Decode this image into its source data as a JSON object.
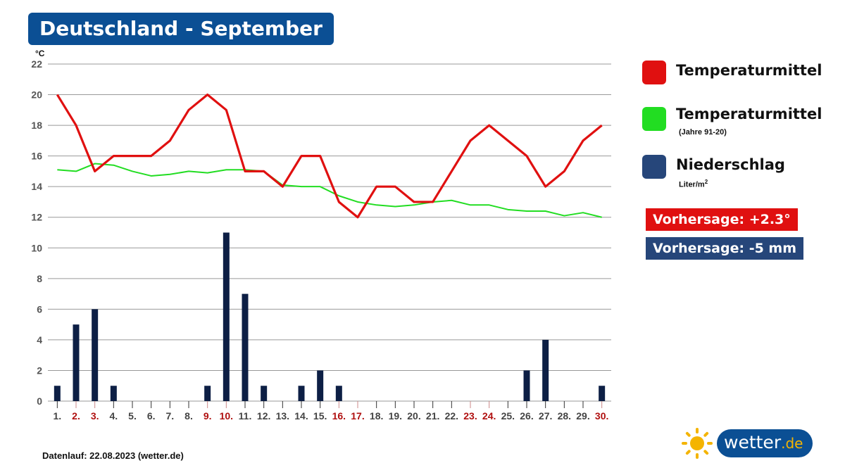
{
  "header": {
    "title": "Deutschland - September"
  },
  "chart_data": {
    "type": "line+bar",
    "title": "Deutschland - September",
    "ylabel": "°C",
    "ylim": [
      0,
      22
    ],
    "yticks": [
      0,
      2,
      4,
      6,
      8,
      10,
      12,
      14,
      16,
      18,
      20,
      22
    ],
    "grid": true,
    "categories": [
      "1.",
      "2.",
      "3.",
      "4.",
      "5.",
      "6.",
      "7.",
      "8.",
      "9.",
      "10.",
      "11.",
      "12.",
      "13.",
      "14.",
      "15.",
      "16.",
      "17.",
      "18.",
      "19.",
      "20.",
      "21.",
      "22.",
      "23.",
      "24.",
      "25.",
      "26.",
      "27.",
      "28.",
      "29.",
      "30."
    ],
    "highlighted_days": [
      "2.",
      "3.",
      "9.",
      "10.",
      "16.",
      "17.",
      "23.",
      "24.",
      "30."
    ],
    "series": [
      {
        "name": "Temperaturmittel",
        "type": "line",
        "color": "#e01010",
        "values": [
          20,
          18,
          15,
          16,
          16,
          16,
          17,
          19,
          20,
          19,
          15,
          15,
          14,
          16,
          16,
          13,
          12,
          14,
          14,
          13,
          13,
          15,
          17,
          18,
          17,
          16,
          14,
          15,
          17,
          18
        ]
      },
      {
        "name": "Temperaturmittel (Jahre 91-20)",
        "type": "line",
        "color": "#22dd22",
        "values": [
          15.1,
          15.0,
          15.5,
          15.4,
          15.0,
          14.7,
          14.8,
          15.0,
          14.9,
          15.1,
          15.1,
          15.0,
          14.1,
          14.0,
          14.0,
          13.4,
          13.0,
          12.8,
          12.7,
          12.8,
          13.0,
          13.1,
          12.8,
          12.8,
          12.5,
          12.4,
          12.4,
          12.1,
          12.3,
          12.0
        ]
      },
      {
        "name": "Niederschlag",
        "type": "bar",
        "color": "#0d1f45",
        "values": [
          1,
          5,
          6,
          1,
          0,
          0,
          0,
          0,
          1,
          11,
          7,
          1,
          0,
          1,
          2,
          1,
          0,
          0,
          0,
          0,
          0,
          0,
          0,
          0,
          0,
          2,
          4,
          0,
          0,
          1
        ]
      }
    ]
  },
  "legend": {
    "items": [
      {
        "label": "Temperaturmittel",
        "color": "#e01010"
      },
      {
        "label": "Temperaturmittel",
        "sub": "(Jahre 91-20)",
        "color": "#22dd22"
      },
      {
        "label": "Niederschlag",
        "sub": "Liter/m",
        "sub_sup": "2",
        "color": "#26467a"
      }
    ]
  },
  "badges": {
    "temp": {
      "text": "Vorhersage: +2.3°",
      "color": "#e01010"
    },
    "rain": {
      "text": "Vorhersage: -5 mm",
      "color": "#26467a"
    }
  },
  "footer": {
    "text": "Datenlauf: 22.08.2023 (wetter.de)"
  },
  "logo": {
    "name": "wetter",
    "domain": ".de",
    "icon": "sun-icon"
  },
  "colors": {
    "title_bg": "#0b4f94",
    "weekend_label": "#b01010",
    "weekday_label": "#444444",
    "grid": "#999999"
  }
}
